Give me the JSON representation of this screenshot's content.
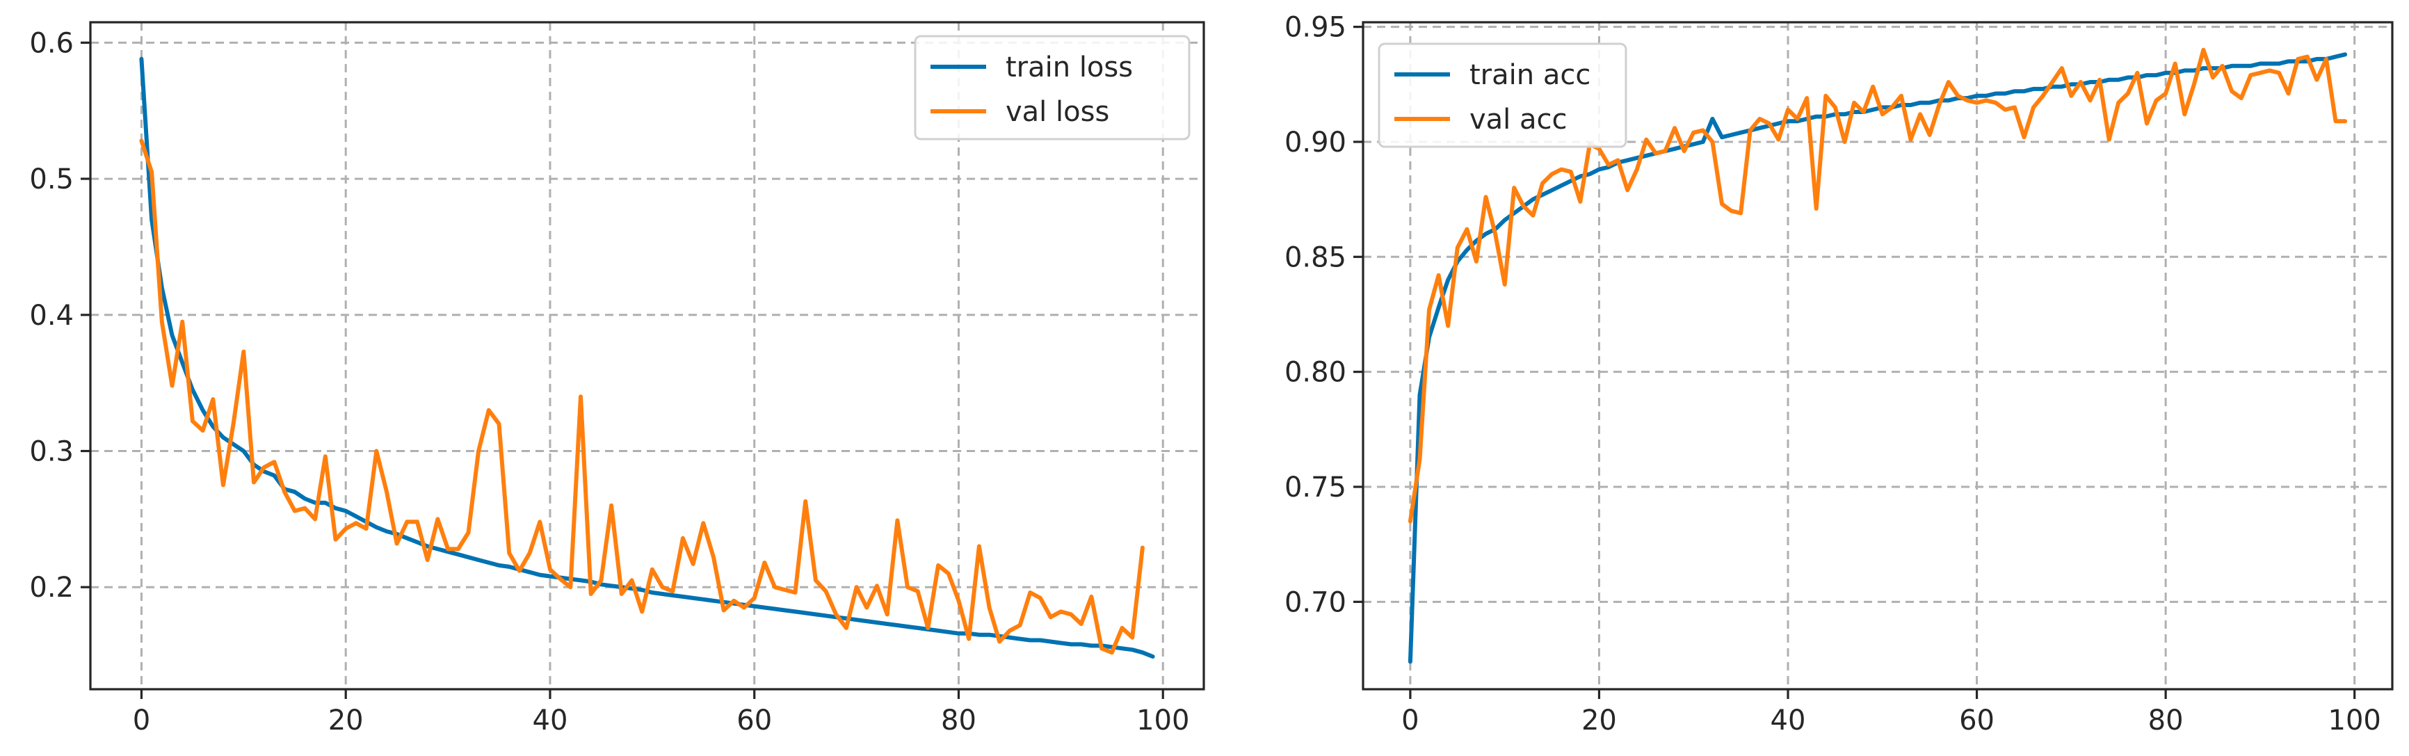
{
  "chart_data": [
    {
      "type": "line",
      "name": "loss",
      "title": "",
      "xlabel": "",
      "ylabel": "",
      "xlim": [
        -5,
        104
      ],
      "ylim": [
        0.125,
        0.615
      ],
      "xticks": [
        0,
        20,
        40,
        60,
        80,
        100
      ],
      "yticks": [
        0.2,
        0.3,
        0.4,
        0.5,
        0.6
      ],
      "ytick_decimals": 1,
      "grid": true,
      "legend": "top-right",
      "series": [
        {
          "name": "train loss",
          "color": "#0072b2",
          "values": [
            0.588,
            0.47,
            0.42,
            0.385,
            0.365,
            0.345,
            0.33,
            0.318,
            0.31,
            0.305,
            0.3,
            0.29,
            0.285,
            0.282,
            0.272,
            0.27,
            0.265,
            0.262,
            0.262,
            0.258,
            0.256,
            0.252,
            0.248,
            0.244,
            0.241,
            0.239,
            0.236,
            0.233,
            0.23,
            0.228,
            0.226,
            0.224,
            0.222,
            0.22,
            0.218,
            0.216,
            0.215,
            0.213,
            0.211,
            0.209,
            0.208,
            0.207,
            0.206,
            0.205,
            0.204,
            0.202,
            0.201,
            0.2,
            0.199,
            0.198,
            0.196,
            0.195,
            0.194,
            0.193,
            0.192,
            0.191,
            0.19,
            0.189,
            0.188,
            0.187,
            0.186,
            0.185,
            0.184,
            0.183,
            0.182,
            0.181,
            0.18,
            0.179,
            0.178,
            0.177,
            0.176,
            0.175,
            0.174,
            0.173,
            0.172,
            0.171,
            0.17,
            0.169,
            0.168,
            0.167,
            0.166,
            0.166,
            0.165,
            0.165,
            0.164,
            0.163,
            0.162,
            0.161,
            0.161,
            0.16,
            0.159,
            0.158,
            0.158,
            0.157,
            0.157,
            0.156,
            0.155,
            0.154,
            0.152,
            0.149
          ]
        },
        {
          "name": "val loss",
          "color": "#ff7f0e",
          "values": [
            0.528,
            0.505,
            0.395,
            0.348,
            0.395,
            0.322,
            0.315,
            0.338,
            0.275,
            0.32,
            0.373,
            0.277,
            0.288,
            0.292,
            0.27,
            0.256,
            0.258,
            0.25,
            0.296,
            0.235,
            0.243,
            0.247,
            0.243,
            0.3,
            0.27,
            0.232,
            0.248,
            0.248,
            0.22,
            0.25,
            0.228,
            0.228,
            0.24,
            0.3,
            0.33,
            0.32,
            0.225,
            0.212,
            0.225,
            0.248,
            0.213,
            0.206,
            0.2,
            0.34,
            0.195,
            0.205,
            0.26,
            0.195,
            0.205,
            0.182,
            0.213,
            0.2,
            0.197,
            0.236,
            0.217,
            0.247,
            0.222,
            0.183,
            0.19,
            0.185,
            0.192,
            0.218,
            0.2,
            0.198,
            0.196,
            0.263,
            0.205,
            0.197,
            0.18,
            0.17,
            0.2,
            0.185,
            0.201,
            0.18,
            0.249,
            0.2,
            0.197,
            0.17,
            0.216,
            0.21,
            0.19,
            0.162,
            0.23,
            0.185,
            0.16,
            0.168,
            0.172,
            0.196,
            0.192,
            0.178,
            0.182,
            0.18,
            0.173,
            0.193,
            0.155,
            0.152,
            0.17,
            0.163,
            0.229
          ]
        }
      ]
    },
    {
      "type": "line",
      "name": "accuracy",
      "title": "",
      "xlabel": "",
      "ylabel": "",
      "xlim": [
        -5,
        104
      ],
      "ylim": [
        0.662,
        0.952
      ],
      "xticks": [
        0,
        20,
        40,
        60,
        80,
        100
      ],
      "yticks": [
        0.7,
        0.75,
        0.8,
        0.85,
        0.9,
        0.95
      ],
      "ytick_decimals": 2,
      "grid": true,
      "legend": "top-left",
      "series": [
        {
          "name": "train acc",
          "color": "#0072b2",
          "values": [
            0.674,
            0.79,
            0.815,
            0.828,
            0.84,
            0.848,
            0.853,
            0.857,
            0.86,
            0.862,
            0.866,
            0.869,
            0.872,
            0.875,
            0.877,
            0.879,
            0.881,
            0.883,
            0.885,
            0.886,
            0.888,
            0.889,
            0.891,
            0.892,
            0.893,
            0.894,
            0.895,
            0.896,
            0.897,
            0.898,
            0.899,
            0.9,
            0.91,
            0.902,
            0.903,
            0.904,
            0.905,
            0.906,
            0.907,
            0.908,
            0.909,
            0.909,
            0.91,
            0.911,
            0.911,
            0.912,
            0.912,
            0.913,
            0.913,
            0.914,
            0.915,
            0.915,
            0.916,
            0.916,
            0.917,
            0.917,
            0.918,
            0.918,
            0.919,
            0.919,
            0.92,
            0.92,
            0.921,
            0.921,
            0.922,
            0.922,
            0.923,
            0.923,
            0.924,
            0.924,
            0.925,
            0.925,
            0.926,
            0.926,
            0.927,
            0.927,
            0.928,
            0.928,
            0.929,
            0.929,
            0.93,
            0.93,
            0.931,
            0.931,
            0.932,
            0.932,
            0.932,
            0.933,
            0.933,
            0.933,
            0.934,
            0.934,
            0.934,
            0.935,
            0.935,
            0.935,
            0.936,
            0.936,
            0.937,
            0.938
          ]
        },
        {
          "name": "val acc",
          "color": "#ff7f0e",
          "values": [
            0.735,
            0.762,
            0.827,
            0.842,
            0.82,
            0.854,
            0.862,
            0.848,
            0.876,
            0.86,
            0.838,
            0.88,
            0.872,
            0.868,
            0.882,
            0.886,
            0.888,
            0.887,
            0.874,
            0.899,
            0.897,
            0.89,
            0.892,
            0.879,
            0.888,
            0.901,
            0.895,
            0.896,
            0.906,
            0.896,
            0.904,
            0.905,
            0.9,
            0.873,
            0.87,
            0.869,
            0.905,
            0.91,
            0.908,
            0.901,
            0.914,
            0.91,
            0.919,
            0.871,
            0.92,
            0.915,
            0.9,
            0.917,
            0.913,
            0.924,
            0.912,
            0.915,
            0.92,
            0.901,
            0.912,
            0.903,
            0.916,
            0.926,
            0.92,
            0.918,
            0.917,
            0.918,
            0.917,
            0.914,
            0.915,
            0.902,
            0.915,
            0.92,
            0.926,
            0.932,
            0.92,
            0.926,
            0.918,
            0.927,
            0.901,
            0.917,
            0.921,
            0.93,
            0.908,
            0.918,
            0.921,
            0.934,
            0.912,
            0.925,
            0.94,
            0.928,
            0.933,
            0.922,
            0.919,
            0.929,
            0.93,
            0.931,
            0.93,
            0.921,
            0.936,
            0.937,
            0.927,
            0.936,
            0.909,
            0.909
          ]
        }
      ]
    }
  ]
}
